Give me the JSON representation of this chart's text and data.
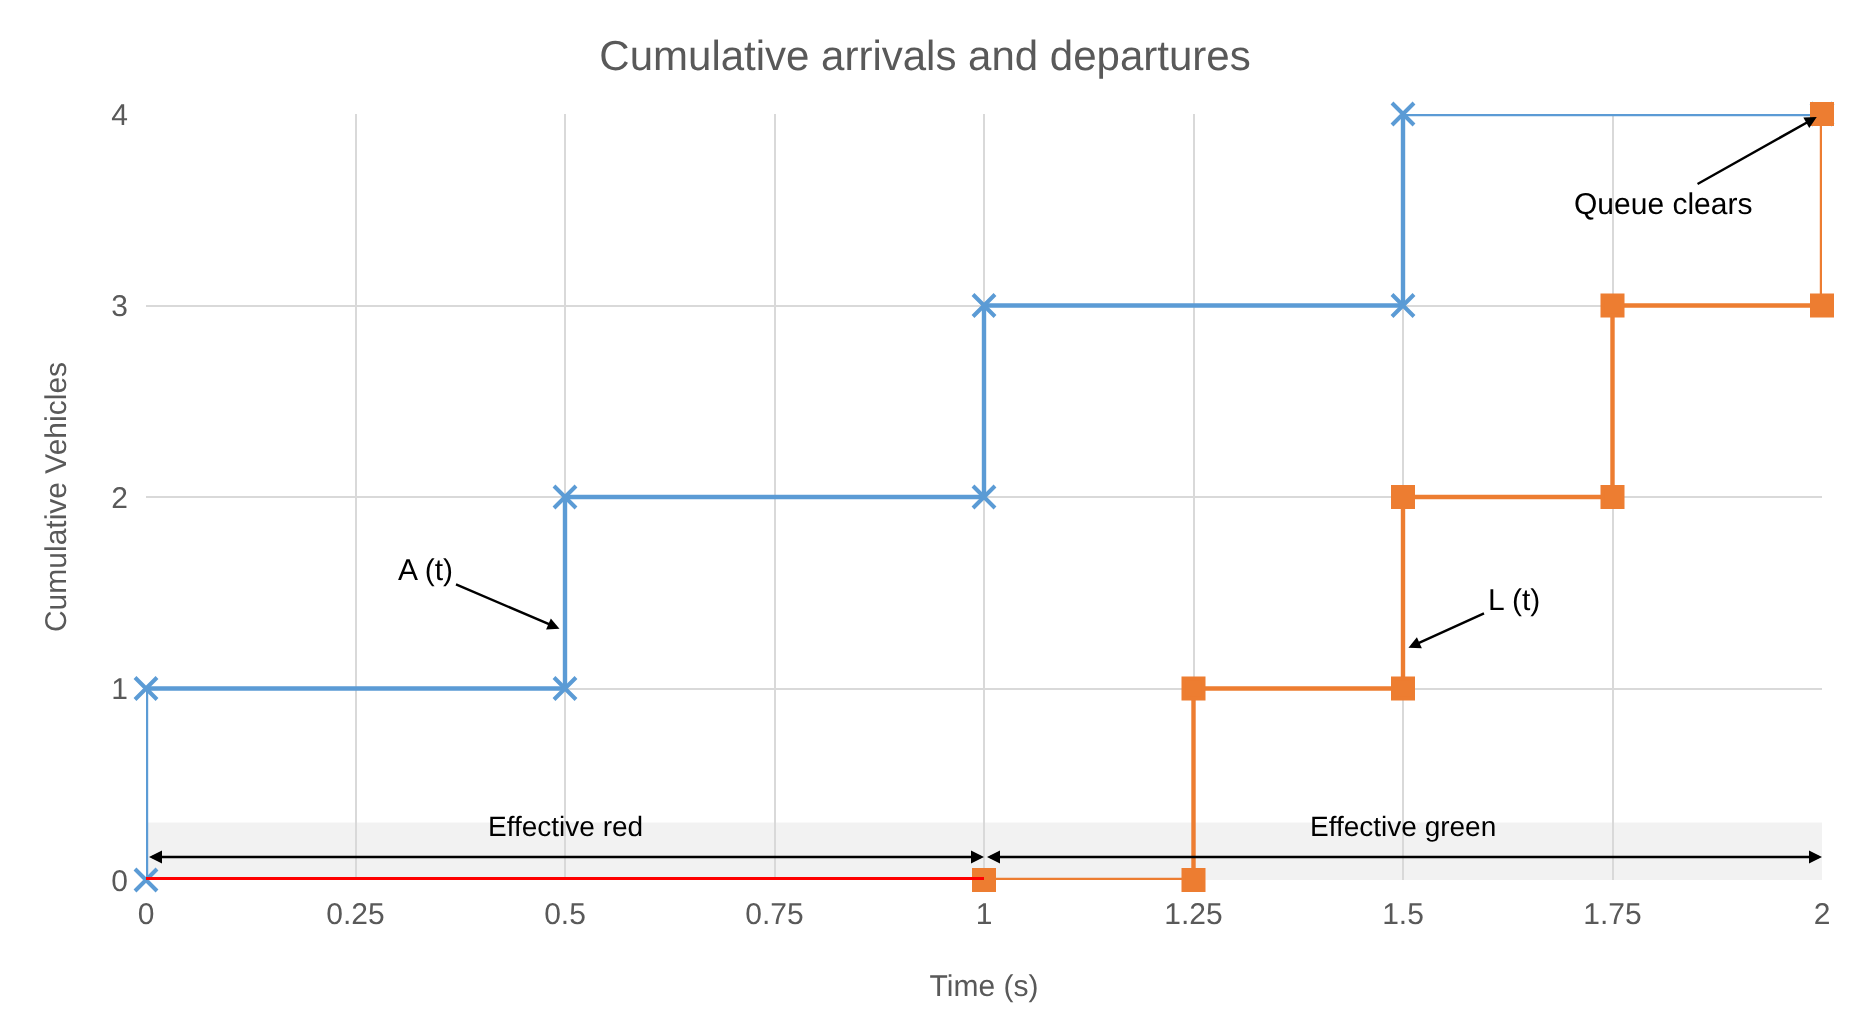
{
  "chart_data": {
    "type": "line",
    "title": "Cumulative arrivals and departures",
    "xlabel": "Time (s)",
    "ylabel": "Cumulative Vehicles",
    "series": [
      {
        "color": "#5b9bd5",
        "marker": "cross",
        "x": [
          0,
          0,
          0.5,
          0.5,
          1,
          1,
          1.5,
          1.5,
          2
        ],
        "values": [
          0,
          1,
          1,
          2,
          2,
          3,
          3,
          4,
          4
        ]
      },
      {
        "color": "#ed7d31",
        "marker": "square",
        "x": [
          1,
          1.25,
          1.25,
          1.5,
          1.5,
          1.75,
          1.75,
          2,
          2
        ],
        "values": [
          0,
          0,
          1,
          1,
          2,
          2,
          3,
          3,
          4
        ]
      },
      {
        "color": "#ff0000",
        "marker": "none",
        "x": [
          0,
          1
        ],
        "values": [
          0,
          0
        ]
      }
    ],
    "xlim": [
      0,
      2
    ],
    "ylim": [
      0,
      4
    ],
    "xticks": [
      0,
      0.25,
      0.5,
      0.75,
      1,
      1.25,
      1.5,
      1.75,
      2
    ],
    "yticks": [
      0,
      1,
      2,
      3,
      4
    ],
    "grid": true,
    "line_style": "solid",
    "bands": [
      {
        "axis": "x",
        "from": 0,
        "to": 1,
        "label": "Effective red"
      },
      {
        "axis": "x",
        "from": 1,
        "to": 2,
        "label": "Effective green"
      }
    ],
    "annotations": [
      {
        "text": "A (t)",
        "x": 0.5,
        "y": 1.3
      },
      {
        "text": "L (t)",
        "x": 1.5,
        "y": 1.2
      },
      {
        "text": "Queue clears",
        "x": 2,
        "y": 4
      }
    ]
  }
}
